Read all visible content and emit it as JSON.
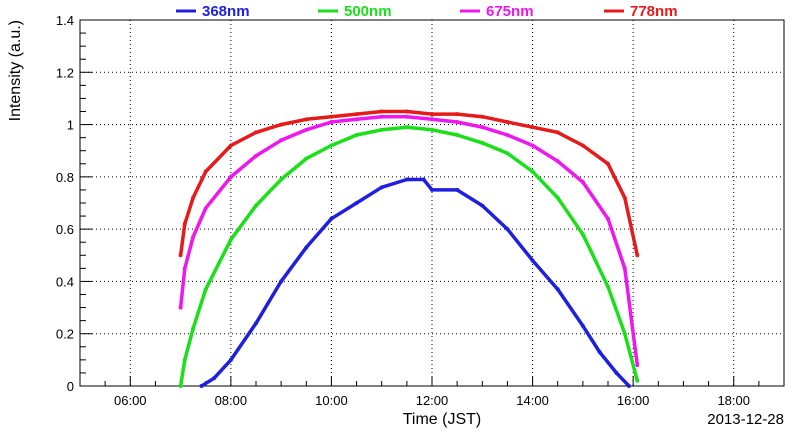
{
  "chart_data": {
    "type": "scatter",
    "title": "",
    "xlabel": "Time (JST)",
    "ylabel": "Intensity (a.u.)",
    "date_label": "2013-12-28",
    "xlim": [
      "05:00",
      "19:00"
    ],
    "ylim": [
      0,
      1.4
    ],
    "grid": true,
    "legend_position": "top",
    "x_ticks": [
      "06:00",
      "08:00",
      "10:00",
      "12:00",
      "14:00",
      "16:00",
      "18:00"
    ],
    "y_ticks": [
      "0",
      "0.2",
      "0.4",
      "0.6",
      "0.8",
      "1",
      "1.2",
      "1.4"
    ],
    "series": [
      {
        "name": "368nm",
        "color": "#1f1fdf",
        "x": [
          "07:25",
          "07:40",
          "08:00",
          "08:30",
          "09:00",
          "09:30",
          "10:00",
          "10:30",
          "11:00",
          "11:30",
          "11:50",
          "12:00",
          "12:30",
          "13:00",
          "13:30",
          "14:00",
          "14:30",
          "15:00",
          "15:20",
          "15:40",
          "15:55"
        ],
        "y": [
          0.0,
          0.03,
          0.1,
          0.24,
          0.4,
          0.53,
          0.64,
          0.7,
          0.76,
          0.79,
          0.79,
          0.75,
          0.75,
          0.69,
          0.6,
          0.48,
          0.37,
          0.23,
          0.13,
          0.05,
          0.0
        ]
      },
      {
        "name": "500nm",
        "color": "#19e019",
        "x": [
          "07:00",
          "07:05",
          "07:15",
          "07:30",
          "08:00",
          "08:30",
          "09:00",
          "09:30",
          "10:00",
          "10:30",
          "11:00",
          "11:30",
          "12:00",
          "12:30",
          "13:00",
          "13:30",
          "14:00",
          "14:30",
          "15:00",
          "15:30",
          "15:50",
          "16:05"
        ],
        "y": [
          0.0,
          0.1,
          0.22,
          0.37,
          0.56,
          0.69,
          0.79,
          0.87,
          0.92,
          0.96,
          0.98,
          0.99,
          0.98,
          0.96,
          0.93,
          0.89,
          0.82,
          0.72,
          0.58,
          0.38,
          0.2,
          0.02
        ]
      },
      {
        "name": "675nm",
        "color": "#ee17ee",
        "x": [
          "07:00",
          "07:05",
          "07:15",
          "07:30",
          "08:00",
          "08:30",
          "09:00",
          "09:30",
          "10:00",
          "10:30",
          "11:00",
          "11:30",
          "12:00",
          "12:30",
          "13:00",
          "13:30",
          "14:00",
          "14:30",
          "15:00",
          "15:30",
          "15:50",
          "16:05"
        ],
        "y": [
          0.3,
          0.45,
          0.57,
          0.68,
          0.8,
          0.88,
          0.94,
          0.98,
          1.01,
          1.02,
          1.03,
          1.03,
          1.02,
          1.01,
          0.99,
          0.96,
          0.92,
          0.86,
          0.78,
          0.64,
          0.45,
          0.08
        ]
      },
      {
        "name": "778nm",
        "color": "#e71a1a",
        "x": [
          "07:00",
          "07:05",
          "07:15",
          "07:30",
          "08:00",
          "08:30",
          "09:00",
          "09:30",
          "10:00",
          "10:30",
          "11:00",
          "11:30",
          "12:00",
          "12:30",
          "13:00",
          "13:30",
          "14:00",
          "14:30",
          "15:00",
          "15:30",
          "15:50",
          "16:05"
        ],
        "y": [
          0.5,
          0.62,
          0.72,
          0.82,
          0.92,
          0.97,
          1.0,
          1.02,
          1.03,
          1.04,
          1.05,
          1.05,
          1.04,
          1.04,
          1.03,
          1.01,
          0.99,
          0.97,
          0.92,
          0.85,
          0.72,
          0.5
        ]
      }
    ]
  }
}
